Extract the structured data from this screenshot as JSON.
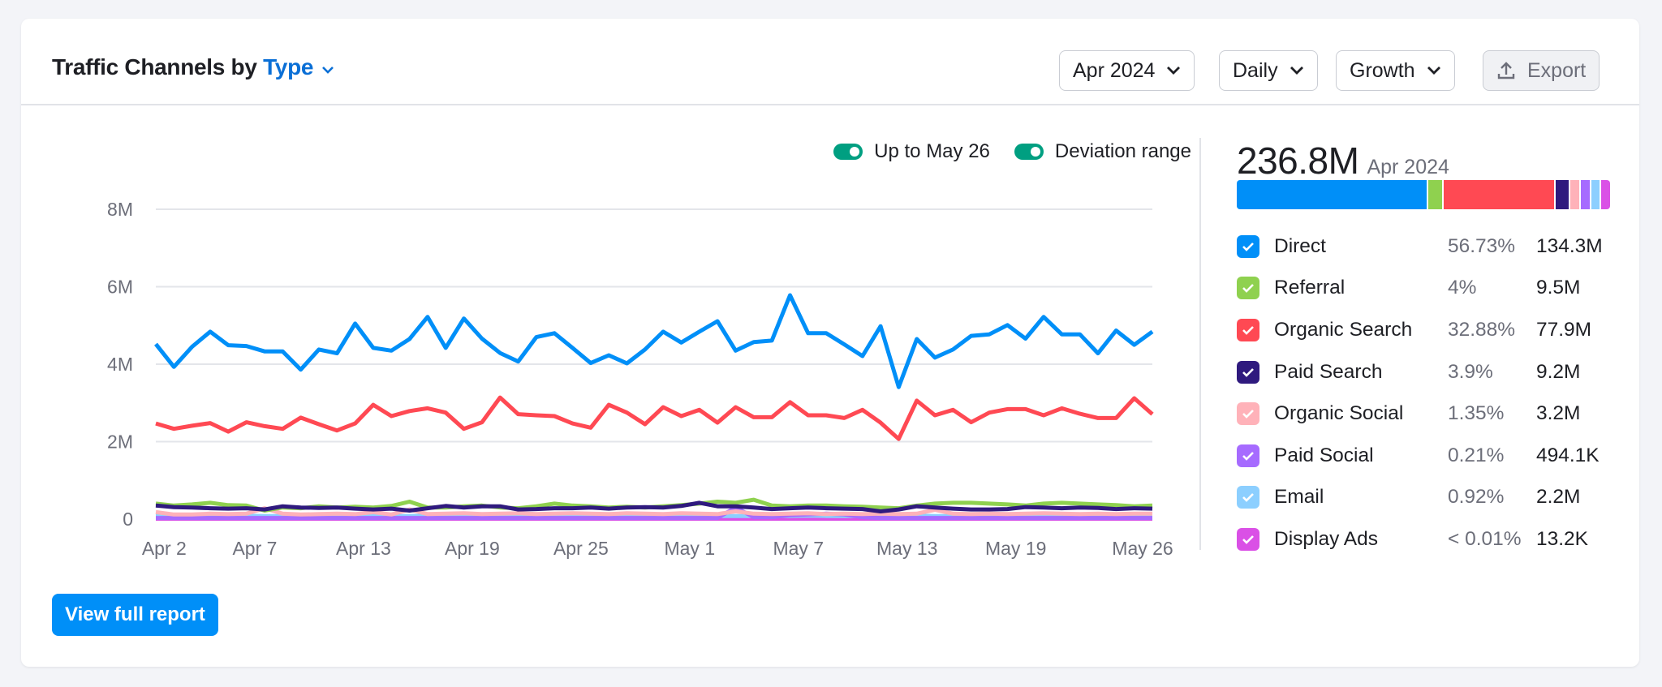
{
  "header": {
    "title_prefix": "Traffic Channels by",
    "title_type": "Type",
    "period_label": "Apr 2024",
    "granularity_label": "Daily",
    "metric_label": "Growth",
    "export_label": "Export"
  },
  "toggles": [
    {
      "label": "Up to May 26",
      "on": true
    },
    {
      "label": "Deviation range",
      "on": true
    }
  ],
  "summary": {
    "total": "236.8M",
    "period": "Apr 2024"
  },
  "channels": [
    {
      "name": "Direct",
      "pct": "56.73%",
      "value": "134.3M",
      "share": 56.73,
      "color": "#008ff8",
      "checked": true
    },
    {
      "name": "Referral",
      "pct": "4%",
      "value": "9.5M",
      "share": 4,
      "color": "#8fd14f",
      "checked": true
    },
    {
      "name": "Organic Search",
      "pct": "32.88%",
      "value": "77.9M",
      "share": 32.88,
      "color": "#ff4953",
      "checked": true
    },
    {
      "name": "Paid Search",
      "pct": "3.9%",
      "value": "9.2M",
      "share": 3.9,
      "color": "#2f1a7e",
      "checked": true
    },
    {
      "name": "Organic Social",
      "pct": "1.35%",
      "value": "3.2M",
      "share": 1.35,
      "color": "#ffb2b9",
      "checked": true
    },
    {
      "name": "Paid Social",
      "pct": "0.21%",
      "value": "494.1K",
      "share": 0.21,
      "color": "#a66bff",
      "checked": true
    },
    {
      "name": "Email",
      "pct": "0.92%",
      "value": "2.2M",
      "share": 0.92,
      "color": "#8ccfff",
      "checked": true
    },
    {
      "name": "Display Ads",
      "pct": "< 0.01%",
      "value": "13.2K",
      "share": 0.01,
      "color": "#da50e6",
      "checked": true
    }
  ],
  "footer": {
    "report_label": "View full report"
  },
  "chart_data": {
    "type": "line",
    "ylim": [
      0,
      8
    ],
    "y_ticks": [
      {
        "value": 0,
        "label": "0"
      },
      {
        "value": 2,
        "label": "2M"
      },
      {
        "value": 4,
        "label": "4M"
      },
      {
        "value": 6,
        "label": "6M"
      },
      {
        "value": 8,
        "label": "8M"
      }
    ],
    "x_ticks": [
      {
        "index": 1,
        "label": "Apr 2"
      },
      {
        "index": 6,
        "label": "Apr 7"
      },
      {
        "index": 12,
        "label": "Apr 13"
      },
      {
        "index": 18,
        "label": "Apr 19"
      },
      {
        "index": 24,
        "label": "Apr 25"
      },
      {
        "index": 30,
        "label": "May 1"
      },
      {
        "index": 36,
        "label": "May 7"
      },
      {
        "index": 42,
        "label": "May 13"
      },
      {
        "index": 48,
        "label": "May 19"
      },
      {
        "index": 55,
        "label": "May 26"
      }
    ],
    "x": [
      "Apr 1",
      "Apr 2",
      "Apr 3",
      "Apr 4",
      "Apr 5",
      "Apr 6",
      "Apr 7",
      "Apr 8",
      "Apr 9",
      "Apr 10",
      "Apr 11",
      "Apr 12",
      "Apr 13",
      "Apr 14",
      "Apr 15",
      "Apr 16",
      "Apr 17",
      "Apr 18",
      "Apr 19",
      "Apr 20",
      "Apr 21",
      "Apr 22",
      "Apr 23",
      "Apr 24",
      "Apr 25",
      "Apr 26",
      "Apr 27",
      "Apr 28",
      "Apr 29",
      "Apr 30",
      "May 1",
      "May 2",
      "May 3",
      "May 4",
      "May 5",
      "May 6",
      "May 7",
      "May 8",
      "May 9",
      "May 10",
      "May 11",
      "May 12",
      "May 13",
      "May 14",
      "May 15",
      "May 16",
      "May 17",
      "May 18",
      "May 19",
      "May 20",
      "May 21",
      "May 22",
      "May 23",
      "May 24",
      "May 25",
      "May 26"
    ],
    "unit": "M",
    "grid": true,
    "series": [
      {
        "name": "Display Ads",
        "color": "#da50e6",
        "values": [
          0.01,
          0.01,
          0.01,
          0.01,
          0.01,
          0.01,
          0.01,
          0.01,
          0.01,
          0.01,
          0.01,
          0.01,
          0.01,
          0.01,
          0.01,
          0.01,
          0.01,
          0.01,
          0.01,
          0.01,
          0.01,
          0.01,
          0.01,
          0.01,
          0.01,
          0.01,
          0.01,
          0.01,
          0.01,
          0.01,
          0.01,
          0.01,
          0.01,
          0.01,
          0.01,
          0.01,
          0.01,
          0.01,
          0.01,
          0.01,
          0.01,
          0.01,
          0.01,
          0.01,
          0.01,
          0.01,
          0.01,
          0.01,
          0.01,
          0.01,
          0.01,
          0.01,
          0.01,
          0.01,
          0.01,
          0.01
        ]
      },
      {
        "name": "Email",
        "color": "#8ccfff",
        "values": [
          0.08,
          0.08,
          0.09,
          0.08,
          0.08,
          0.09,
          0.08,
          0.08,
          0.09,
          0.08,
          0.08,
          0.08,
          0.09,
          0.08,
          0.08,
          0.09,
          0.08,
          0.08,
          0.08,
          0.09,
          0.08,
          0.08,
          0.08,
          0.08,
          0.09,
          0.08,
          0.08,
          0.08,
          0.08,
          0.08,
          0.09,
          0.08,
          0.08,
          0.08,
          0.08,
          0.08,
          0.09,
          0.08,
          0.08,
          0.08,
          0.08,
          0.08,
          0.09,
          0.08,
          0.08,
          0.08,
          0.08,
          0.08,
          0.09,
          0.08,
          0.08,
          0.08,
          0.08,
          0.08,
          0.08,
          0.08
        ]
      },
      {
        "name": "Paid Social",
        "color": "#a66bff",
        "values": [
          0.03,
          0.03,
          0.03,
          0.03,
          0.03,
          0.03,
          0.03,
          0.03,
          0.03,
          0.03,
          0.03,
          0.03,
          0.03,
          0.03,
          0.03,
          0.03,
          0.03,
          0.03,
          0.03,
          0.03,
          0.03,
          0.03,
          0.03,
          0.03,
          0.03,
          0.03,
          0.03,
          0.03,
          0.03,
          0.03,
          0.03,
          0.03,
          0.3,
          0.05,
          0.05,
          0.1,
          0.12,
          0.14,
          0.12,
          0.05,
          0.03,
          0.03,
          0.03,
          0.03,
          0.03,
          0.03,
          0.03,
          0.03,
          0.03,
          0.03,
          0.03,
          0.03,
          0.03,
          0.03,
          0.03,
          0.03
        ]
      },
      {
        "name": "Organic Social",
        "color": "#ffb2b9",
        "values": [
          0.18,
          0.12,
          0.12,
          0.14,
          0.13,
          0.14,
          0.28,
          0.14,
          0.12,
          0.13,
          0.14,
          0.13,
          0.18,
          0.12,
          0.25,
          0.13,
          0.14,
          0.15,
          0.13,
          0.14,
          0.15,
          0.13,
          0.14,
          0.15,
          0.14,
          0.13,
          0.15,
          0.14,
          0.13,
          0.15,
          0.14,
          0.13,
          0.2,
          0.14,
          0.13,
          0.14,
          0.15,
          0.13,
          0.14,
          0.13,
          0.14,
          0.13,
          0.14,
          0.24,
          0.14,
          0.13,
          0.14,
          0.13,
          0.14,
          0.15,
          0.14,
          0.13,
          0.14,
          0.13,
          0.14,
          0.14
        ]
      },
      {
        "name": "Referral",
        "color": "#8fd14f",
        "values": [
          0.4,
          0.35,
          0.38,
          0.42,
          0.36,
          0.35,
          0.22,
          0.3,
          0.28,
          0.33,
          0.3,
          0.32,
          0.3,
          0.34,
          0.45,
          0.3,
          0.3,
          0.33,
          0.35,
          0.3,
          0.28,
          0.33,
          0.4,
          0.35,
          0.33,
          0.3,
          0.32,
          0.3,
          0.33,
          0.36,
          0.4,
          0.45,
          0.42,
          0.5,
          0.35,
          0.33,
          0.35,
          0.35,
          0.33,
          0.32,
          0.3,
          0.28,
          0.35,
          0.4,
          0.42,
          0.42,
          0.4,
          0.38,
          0.35,
          0.4,
          0.42,
          0.4,
          0.38,
          0.36,
          0.33,
          0.35
        ]
      },
      {
        "name": "Paid Search",
        "color": "#2f1a7e",
        "values": [
          0.35,
          0.31,
          0.3,
          0.28,
          0.27,
          0.28,
          0.25,
          0.33,
          0.3,
          0.29,
          0.3,
          0.27,
          0.25,
          0.27,
          0.22,
          0.28,
          0.34,
          0.3,
          0.33,
          0.33,
          0.25,
          0.26,
          0.28,
          0.28,
          0.3,
          0.27,
          0.3,
          0.31,
          0.3,
          0.34,
          0.42,
          0.33,
          0.33,
          0.3,
          0.26,
          0.28,
          0.3,
          0.28,
          0.27,
          0.26,
          0.2,
          0.25,
          0.33,
          0.3,
          0.27,
          0.25,
          0.25,
          0.26,
          0.31,
          0.3,
          0.28,
          0.3,
          0.29,
          0.26,
          0.28,
          0.27
        ]
      },
      {
        "name": "Organic Search",
        "color": "#ff4953",
        "values": [
          2.47,
          2.33,
          2.41,
          2.48,
          2.26,
          2.5,
          2.4,
          2.33,
          2.62,
          2.45,
          2.29,
          2.47,
          2.95,
          2.66,
          2.79,
          2.86,
          2.75,
          2.33,
          2.5,
          3.14,
          2.71,
          2.68,
          2.66,
          2.47,
          2.36,
          2.95,
          2.75,
          2.45,
          2.89,
          2.66,
          2.82,
          2.49,
          2.89,
          2.63,
          2.63,
          3.02,
          2.68,
          2.68,
          2.61,
          2.82,
          2.49,
          2.07,
          3.06,
          2.68,
          2.82,
          2.5,
          2.75,
          2.84,
          2.84,
          2.68,
          2.86,
          2.72,
          2.61,
          2.61,
          3.12,
          2.71
        ]
      },
      {
        "name": "Direct",
        "color": "#008ff8",
        "values": [
          4.52,
          3.93,
          4.45,
          4.84,
          4.49,
          4.47,
          4.33,
          4.33,
          3.86,
          4.38,
          4.28,
          5.05,
          4.42,
          4.35,
          4.65,
          5.22,
          4.42,
          5.18,
          4.66,
          4.29,
          4.07,
          4.7,
          4.8,
          4.42,
          4.03,
          4.23,
          4.02,
          4.38,
          4.84,
          4.56,
          4.84,
          5.11,
          4.35,
          4.57,
          4.61,
          5.78,
          4.8,
          4.8,
          4.51,
          4.21,
          4.98,
          3.41,
          4.65,
          4.17,
          4.38,
          4.73,
          4.77,
          5.01,
          4.66,
          5.22,
          4.77,
          4.77,
          4.28,
          4.87,
          4.5,
          4.84
        ]
      }
    ]
  }
}
